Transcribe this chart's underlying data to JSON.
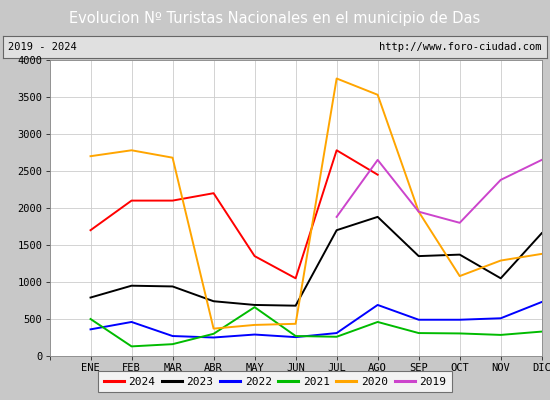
{
  "title": "Evolucion Nº Turistas Nacionales en el municipio de Das",
  "subtitle_left": "2019 - 2024",
  "subtitle_right": "http://www.foro-ciudad.com",
  "months": [
    "",
    "ENE",
    "FEB",
    "MAR",
    "ABR",
    "MAY",
    "JUN",
    "JUL",
    "AGO",
    "SEP",
    "OCT",
    "NOV",
    "DIC"
  ],
  "ylim": [
    0,
    4000
  ],
  "yticks": [
    0,
    500,
    1000,
    1500,
    2000,
    2500,
    3000,
    3500,
    4000
  ],
  "series": {
    "2024": {
      "color": "#ff0000",
      "values": [
        null,
        1700,
        2100,
        2100,
        2200,
        1350,
        1050,
        2780,
        2450,
        null,
        null,
        null,
        null
      ]
    },
    "2023": {
      "color": "#000000",
      "values": [
        null,
        790,
        950,
        940,
        740,
        690,
        680,
        1700,
        1880,
        1350,
        1370,
        1050,
        1660
      ]
    },
    "2022": {
      "color": "#0000ff",
      "values": [
        null,
        360,
        460,
        270,
        250,
        290,
        255,
        310,
        690,
        490,
        490,
        510,
        730
      ]
    },
    "2021": {
      "color": "#00bb00",
      "values": [
        null,
        500,
        130,
        160,
        300,
        660,
        270,
        260,
        460,
        310,
        305,
        285,
        330
      ]
    },
    "2020": {
      "color": "#ffa500",
      "values": [
        null,
        2700,
        2780,
        2680,
        370,
        420,
        435,
        3750,
        3530,
        1950,
        1080,
        1290,
        1380
      ]
    },
    "2019": {
      "color": "#cc44cc",
      "values": [
        null,
        null,
        null,
        null,
        null,
        null,
        null,
        1880,
        2650,
        1950,
        1800,
        2380,
        2650
      ]
    }
  },
  "legend_order": [
    "2024",
    "2023",
    "2022",
    "2021",
    "2020",
    "2019"
  ],
  "title_bg_color": "#4472c4",
  "title_text_color": "#ffffff",
  "plot_bg_color": "#ffffff",
  "grid_color": "#cccccc",
  "fig_bg_color": "#c8c8c8",
  "subtitle_bg_color": "#e0e0e0",
  "title_fontsize": 10.5,
  "subtitle_fontsize": 7.5,
  "axis_fontsize": 7.5,
  "legend_fontsize": 8
}
